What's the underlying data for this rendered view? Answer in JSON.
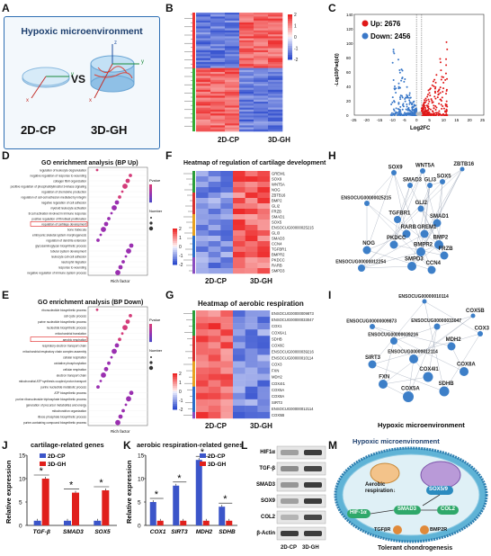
{
  "panel_labels": [
    "A",
    "B",
    "C",
    "D",
    "E",
    "F",
    "G",
    "H",
    "I",
    "J",
    "K",
    "L",
    "M"
  ],
  "A": {
    "title": "Hypoxic microenvironment",
    "vs": "VS",
    "left": "2D-CP",
    "right": "3D-GH",
    "axes": {
      "x": "x",
      "y": "y",
      "z": "z"
    }
  },
  "B": {
    "x_labels": [
      "2D-CP",
      "3D-GH"
    ],
    "scale": [
      "2",
      "1",
      "0",
      "-1",
      "-2"
    ]
  },
  "C": {
    "legend_up": "Up:",
    "up_count": "2676",
    "legend_down": "Down:",
    "down_count": "2456",
    "ylabel": "-Log10(Padj(d))",
    "xlabel": "Log2FC",
    "xticks": [
      "-25",
      "-20",
      "-15",
      "-10",
      "-5",
      "0",
      "5",
      "10",
      "15",
      "20",
      "25"
    ],
    "yticks": [
      "0",
      "20",
      "40",
      "60",
      "80",
      "100",
      "120",
      "140"
    ]
  },
  "D": {
    "title": "GO enrichment analysis (BP Up)",
    "xlabel": "Rich factor",
    "terms": [
      "regulation of leukocyte degranulation",
      "negative regulation of response to wounding",
      "collagen fibril organization",
      "positive regulation of phosphatidylinositol 3-kinase signaling",
      "regulation of chemokine production",
      "regulation of cell-cell adhesion mediated by integrin",
      "negative regulation of cell adhesion",
      "myeloid leukocyte activation",
      "B cell activation involved in immune response",
      "positive regulation of fibroblast proliferation",
      "regulation of cartilage development",
      "bone trabecula",
      "embryonic skeletal system morphogenesis",
      "regulation of dendrite extension",
      "glycosaminoglycan biosynthetic process",
      "tubular system development",
      "leukocyte cell-cell adhesion",
      "neutrophil migration",
      "response to wounding",
      "negative regulation of immune system process"
    ],
    "highlight": "regulation of cartilage development",
    "legend_title": "Pvalue",
    "legend_size": "Number"
  },
  "E": {
    "title": "GO enrichment analysis (BP Down)",
    "xlabel": "Rich factor",
    "terms": [
      "ribonucleotide biosynthetic process",
      "cell cycle process",
      "purine nucleotide biosynthetic process",
      "nucleotide biosynthetic process",
      "mitochondrial translation",
      "aerobic respiration",
      "respiratory electron transport chain",
      "mitochondrial respiratory chain complex assembly",
      "cellular respiration",
      "oxidative phosphorylation",
      "cellular respiration",
      "electron transport chain",
      "mitochondrial ATP synthesis coupled proton transport",
      "purine nucleotide metabolic process",
      "ATP biosynthetic process",
      "purine ribonucleoside triphosphate biosynthetic process",
      "generation of precursor metabolites and energy",
      "mitochondrion organization",
      "ribose phosphate biosynthetic process",
      "purine-containing compound biosynthetic process"
    ],
    "highlight": "aerobic respiration",
    "legend_title": "Pvalue",
    "legend_size": "Number"
  },
  "F": {
    "title": "Heatmap of regulation of cartilage development",
    "genes": [
      "GREM1",
      "SOX9",
      "WNT5A",
      "NOG",
      "ZBTB16",
      "BMP2",
      "GLI2",
      "FRZB",
      "SMAD1",
      "SOX5",
      "ENSOCUG00000025215",
      "GLI3",
      "SMAD3",
      "CCN4",
      "TGFBR1",
      "BMPR2",
      "PKDCC",
      "RARB",
      "SMPD3"
    ],
    "x_labels": [
      "2D-CP",
      "3D-GH"
    ],
    "scale": [
      "2",
      "1",
      "0",
      "-1",
      "-2"
    ]
  },
  "G": {
    "title": "Heatmap of aerobic respiration",
    "genes": [
      "ENSOCUG00000009873",
      "ENSOCUG00000033047",
      "COX1",
      "COX6A1",
      "SDHB",
      "COX6C",
      "ENSOCUG00000039216",
      "ENSOCUG00000010114",
      "COX3",
      "FXN",
      "MDH2",
      "COX4I1",
      "COX5A",
      "COX8A",
      "SIRT3",
      "ENSOCUG00000012114",
      "COX5B"
    ],
    "x_labels": [
      "2D-CP",
      "3D-GH"
    ],
    "scale": [
      "2",
      "1",
      "0",
      "-1",
      "-2"
    ]
  },
  "H": {
    "nodes": [
      "WNT5A",
      "ZBTB16",
      "SOX9",
      "SOX5",
      "SMAD3",
      "GLI3",
      "ENSOCUG00000025215",
      "GLI2",
      "TGFBR1",
      "SMAD1",
      "RARB",
      "GREM1",
      "PKDCC",
      "BMP2",
      "NOG",
      "BMPR2",
      "FRZB",
      "ENSOCUG00000012254",
      "CCN4",
      "SMPD3"
    ]
  },
  "I": {
    "nodes": [
      "ENSOCUG00000010114",
      "COX5B",
      "ENSOCUG00000009873",
      "ENSOCUG00000033047",
      "COX3",
      "ENSOCUG00000039216",
      "MDH2",
      "ENSOCUG00000012114",
      "SIRT3",
      "COX4I1",
      "COX8A",
      "FXN",
      "SDHB",
      "COX5A"
    ]
  },
  "J": {
    "title": "cartilage-related genes",
    "ylabel": "Relative expression",
    "legend": [
      "2D-CP",
      "3D-GH"
    ],
    "star": "*",
    "categories": [
      "TGF-β",
      "SMAD3",
      "SOX5"
    ],
    "yticks": [
      "0",
      "5",
      "10",
      "15"
    ]
  },
  "K": {
    "title": "aerobic respiration-related genes",
    "ylabel": "Relative expression",
    "legend": [
      "2D-CP",
      "3D-GH"
    ],
    "star": "*",
    "categories": [
      "COX1",
      "SIRT3",
      "MDH2",
      "SDHB"
    ],
    "yticks": [
      "0",
      "5",
      "10",
      "15"
    ]
  },
  "L": {
    "rows": [
      "HIF1α",
      "TGF-β",
      "SMAD3",
      "SOX9",
      "COL2",
      "β-Actin"
    ],
    "x_labels": [
      "2D-CP",
      "3D-GH"
    ]
  },
  "M": {
    "title": "Hypoxic microenvironment",
    "aerobic": "Aerobic respiration↓",
    "sox": "SOX5/9",
    "hif": "HIF-1α",
    "smad3": "SMAD3",
    "col2": "COL2",
    "tgfbr": "TGFβR",
    "bmp2r": "BMP2R",
    "caption": "Tolerant chondrogenesis"
  },
  "chart_data": [
    {
      "type": "bar",
      "title": "cartilage-related genes",
      "ylabel": "Relative expression",
      "categories": [
        "TGF-β",
        "SMAD3",
        "SOX5"
      ],
      "series": [
        {
          "name": "2D-CP",
          "values": [
            1,
            1,
            1
          ]
        },
        {
          "name": "3D-GH",
          "values": [
            10,
            7,
            7.5
          ]
        }
      ],
      "ylim": [
        0,
        15
      ],
      "colors": [
        "#3b55c9",
        "#e0201c"
      ]
    },
    {
      "type": "bar",
      "title": "aerobic respiration-related genes",
      "ylabel": "Relative expression",
      "categories": [
        "COX1",
        "SIRT3",
        "MDH2",
        "SDHB"
      ],
      "series": [
        {
          "name": "2D-CP",
          "values": [
            5,
            8.5,
            14,
            4
          ]
        },
        {
          "name": "3D-GH",
          "values": [
            1,
            1,
            1,
            1
          ]
        }
      ],
      "ylim": [
        0,
        15
      ],
      "colors": [
        "#3b55c9",
        "#e0201c"
      ]
    }
  ]
}
